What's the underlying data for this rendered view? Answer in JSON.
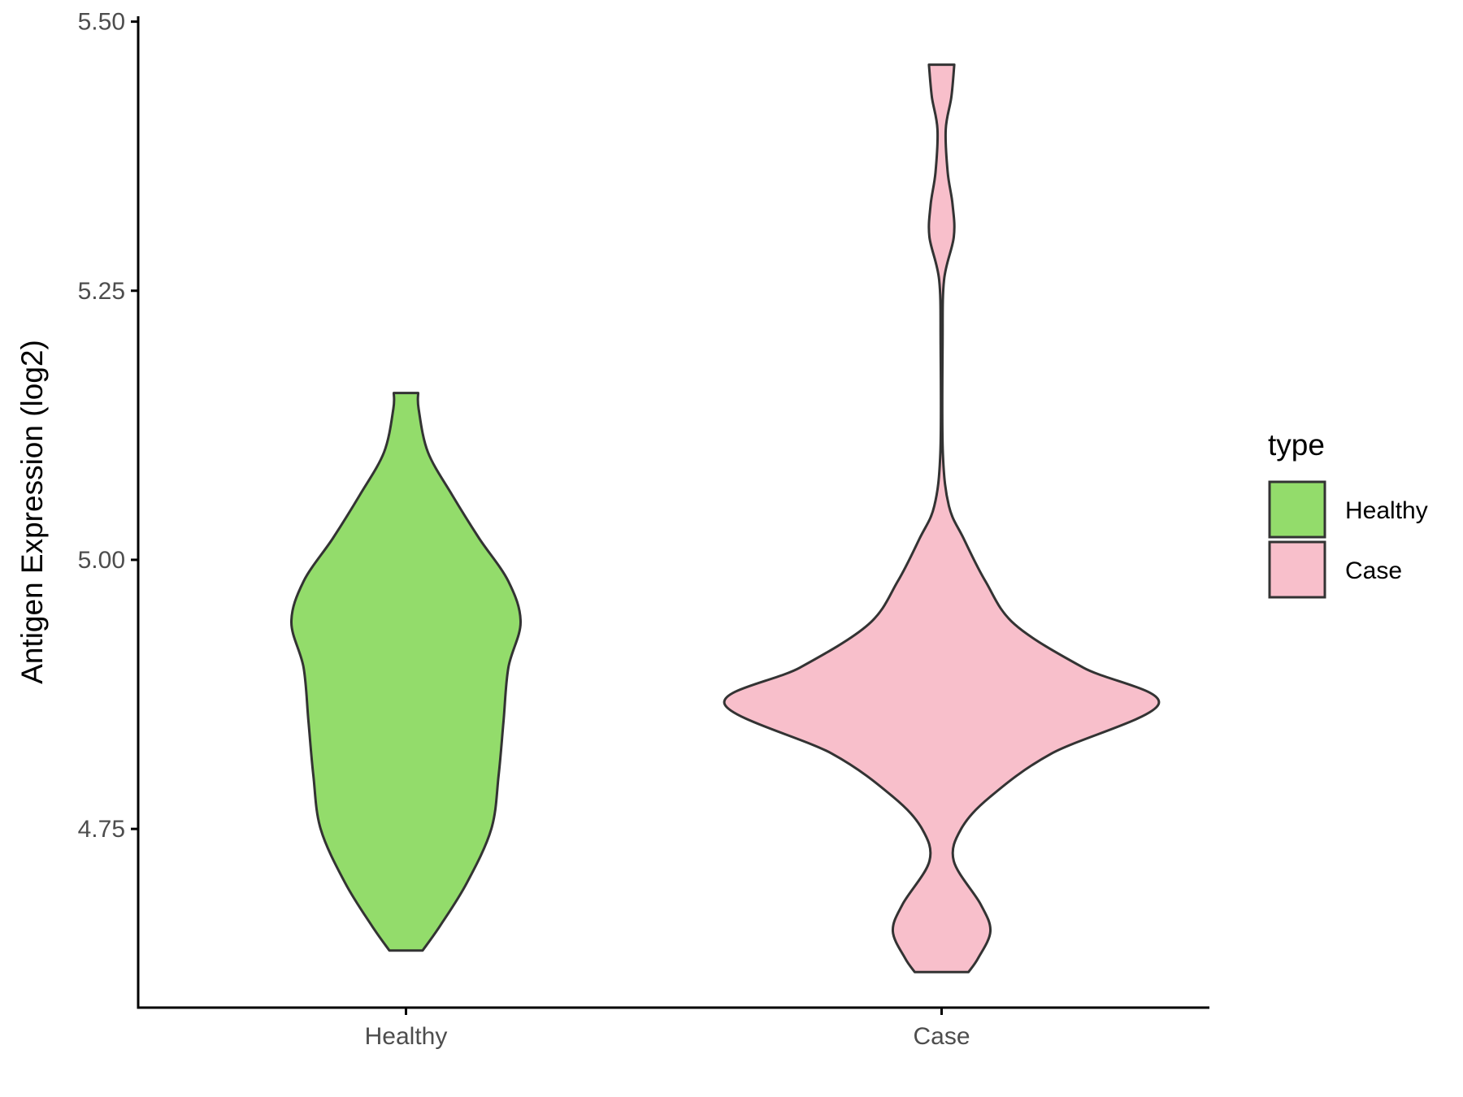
{
  "chart_data": {
    "type": "violin",
    "title": "",
    "xlabel": "",
    "ylabel": "Antigen Expression (log2)",
    "ylim": [
      4.584,
      5.505
    ],
    "yticks": [
      "4.75",
      "5.00",
      "5.25",
      "5.50"
    ],
    "grid": false,
    "categories": [
      "Healthy",
      "Case"
    ],
    "legend": {
      "title": "type",
      "position": "right",
      "entries": [
        {
          "label": "Healthy",
          "color": "#93dc6b"
        },
        {
          "label": "Case",
          "color": "#f8bfcb"
        }
      ]
    },
    "series": [
      {
        "name": "Healthy",
        "color": "#93dc6b",
        "density_profile": [
          [
            4.637,
            0.068
          ],
          [
            4.66,
            0.14
          ],
          [
            4.7,
            0.25
          ],
          [
            4.75,
            0.35
          ],
          [
            4.8,
            0.38
          ],
          [
            4.85,
            0.4
          ],
          [
            4.9,
            0.42
          ],
          [
            4.942,
            0.47
          ],
          [
            4.98,
            0.42
          ],
          [
            5.02,
            0.3
          ],
          [
            5.06,
            0.19
          ],
          [
            5.1,
            0.09
          ],
          [
            5.14,
            0.052
          ],
          [
            5.155,
            0.05
          ]
        ]
      },
      {
        "name": "Case",
        "color": "#f8bfcb",
        "density_profile": [
          [
            4.617,
            0.11
          ],
          [
            4.63,
            0.15
          ],
          [
            4.655,
            0.2
          ],
          [
            4.68,
            0.16
          ],
          [
            4.72,
            0.05
          ],
          [
            4.75,
            0.08
          ],
          [
            4.78,
            0.2
          ],
          [
            4.82,
            0.45
          ],
          [
            4.866,
            0.89
          ],
          [
            4.9,
            0.58
          ],
          [
            4.94,
            0.3
          ],
          [
            4.98,
            0.18
          ],
          [
            5.02,
            0.09
          ],
          [
            5.05,
            0.03
          ],
          [
            5.1,
            0.005
          ],
          [
            5.2,
            0.004
          ],
          [
            5.26,
            0.01
          ],
          [
            5.3,
            0.05
          ],
          [
            5.33,
            0.045
          ],
          [
            5.36,
            0.025
          ],
          [
            5.4,
            0.017
          ],
          [
            5.43,
            0.04
          ],
          [
            5.46,
            0.052
          ]
        ]
      }
    ]
  }
}
